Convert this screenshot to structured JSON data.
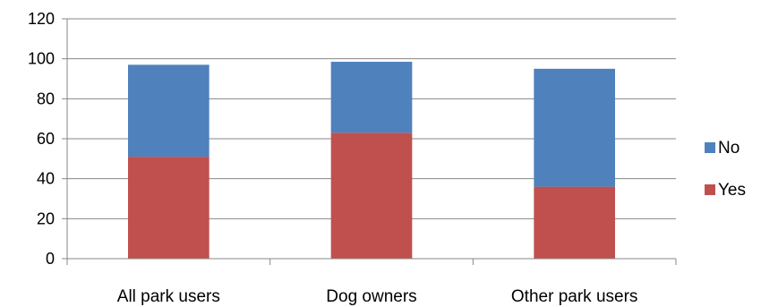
{
  "chart_data": {
    "type": "bar",
    "stacked": true,
    "categories": [
      "All park users",
      "Dog owners",
      "Other park users"
    ],
    "series": [
      {
        "name": "Yes",
        "values": [
          51,
          63,
          36
        ],
        "color": "#C0504D"
      },
      {
        "name": "No",
        "values": [
          46,
          35.5,
          59
        ],
        "color": "#4F81BD"
      }
    ],
    "title": "",
    "xlabel": "",
    "ylabel": "",
    "ylim": [
      0,
      120
    ],
    "yticks": [
      0,
      20,
      40,
      60,
      80,
      100,
      120
    ],
    "grid": true,
    "legend": "right",
    "legend_order": [
      "No",
      "Yes"
    ]
  }
}
